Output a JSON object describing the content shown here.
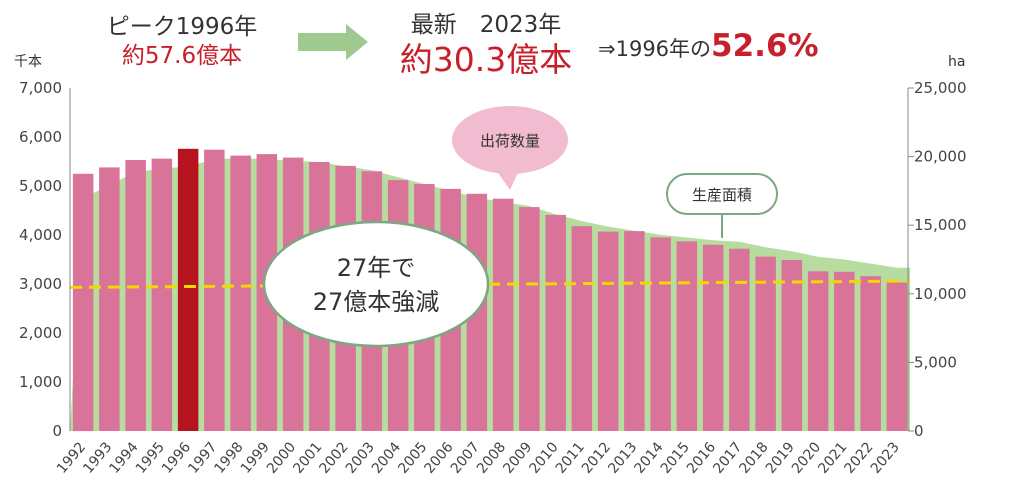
{
  "header": {
    "peak_label": "ピーク1996年",
    "peak_value": "約57.6億本",
    "latest_label": "最新　2023年",
    "latest_value": "約30.3億本",
    "ratio_prefix": "⇒1996年の",
    "ratio_value": "52.6%"
  },
  "colors": {
    "bar": "#d9739a",
    "bar_peak": "#b5141e",
    "area": "#a9d68e",
    "trend_line": "#f2d800",
    "arrow": "#9ec98f",
    "emphasis": "#c7202b"
  },
  "callouts": {
    "shipments": "出荷数量",
    "area": "生産面積",
    "reduction_line1": "27年で",
    "reduction_line2": "27億本強減"
  },
  "chart_data": {
    "type": "bar",
    "categories": [
      "1992",
      "1993",
      "1994",
      "1995",
      "1996",
      "1997",
      "1998",
      "1999",
      "2000",
      "2001",
      "2002",
      "2003",
      "2004",
      "2005",
      "2006",
      "2007",
      "2008",
      "2009",
      "2010",
      "2011",
      "2012",
      "2013",
      "2014",
      "2015",
      "2016",
      "2017",
      "2018",
      "2019",
      "2020",
      "2021",
      "2022",
      "2023"
    ],
    "series": [
      {
        "name": "出荷数量",
        "axis": "left",
        "values": [
          5250,
          5380,
          5530,
          5560,
          5760,
          5740,
          5620,
          5650,
          5580,
          5490,
          5410,
          5300,
          5120,
          5040,
          4940,
          4840,
          4740,
          4570,
          4410,
          4180,
          4070,
          4080,
          3950,
          3870,
          3800,
          3720,
          3560,
          3490,
          3260,
          3250,
          3160,
          3030
        ]
      },
      {
        "name": "生産面積",
        "axis": "right",
        "type": "area",
        "values": [
          17000,
          17900,
          18900,
          19100,
          19300,
          19800,
          19900,
          19800,
          19700,
          19600,
          19300,
          19000,
          18500,
          18000,
          17500,
          17000,
          16700,
          16400,
          15800,
          15300,
          14900,
          14600,
          14300,
          14100,
          13900,
          13800,
          13400,
          13100,
          12700,
          12500,
          12200,
          11900
        ]
      }
    ],
    "trend_line": {
      "axis": "left",
      "from": 2930,
      "to": 3060
    },
    "peak_index": 4,
    "ylabel_left": "千本",
    "ylabel_right": "ha",
    "ylim_left": [
      0,
      7000
    ],
    "ylim_right": [
      0,
      25000
    ],
    "yticks_left": [
      "0",
      "1,000",
      "2,000",
      "3,000",
      "4,000",
      "5,000",
      "6,000",
      "7,000"
    ],
    "yticks_right": [
      "0",
      "5,000",
      "10,000",
      "15,000",
      "20,000",
      "25,000"
    ],
    "grid": false
  }
}
